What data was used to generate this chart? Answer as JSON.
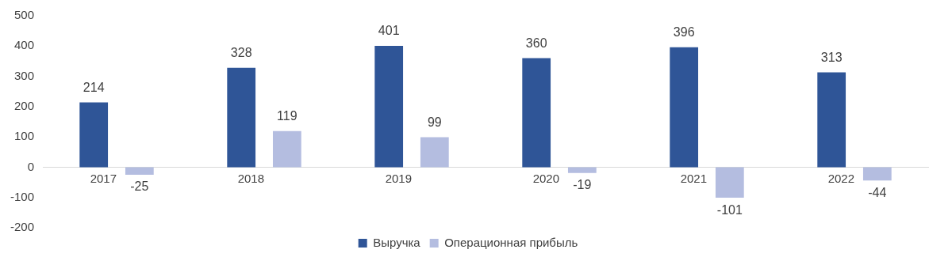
{
  "chart_data": {
    "type": "bar",
    "categories": [
      "2017",
      "2018",
      "2019",
      "2020",
      "2021",
      "2022"
    ],
    "series": [
      {
        "name": "Выручка",
        "color": "#2f5597",
        "values": [
          214,
          328,
          401,
          360,
          396,
          313
        ]
      },
      {
        "name": "Операционная прибыль",
        "color": "#b4bde0",
        "values": [
          -25,
          119,
          99,
          -19,
          -101,
          -44
        ]
      }
    ],
    "ylim": [
      -200,
      500
    ],
    "yticks": [
      -200,
      -100,
      0,
      100,
      200,
      300,
      400,
      500
    ],
    "grid": false,
    "legend": "bottom",
    "data_labels": true
  }
}
